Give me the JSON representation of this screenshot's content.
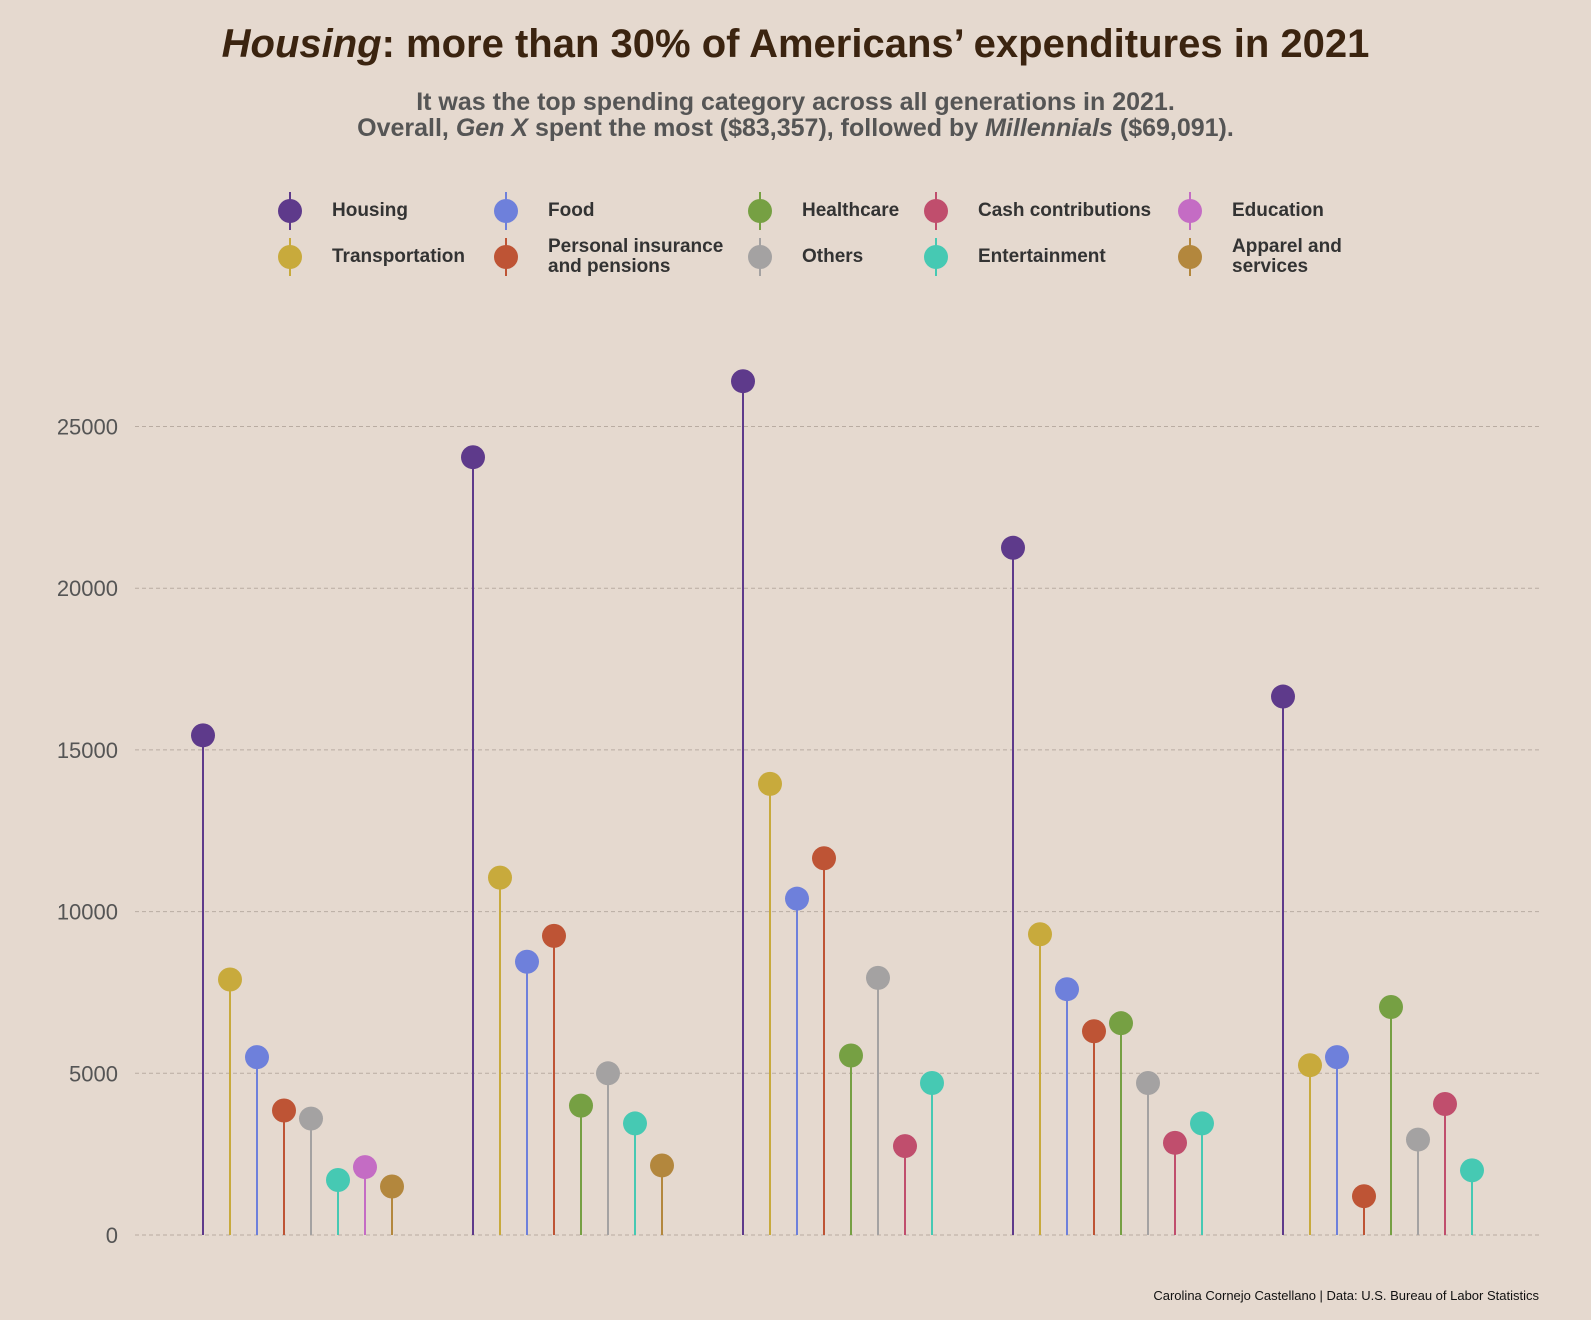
{
  "title": {
    "italic": "Housing",
    "rest": ": more than 30% of Americans’ expenditures in 2021"
  },
  "subtitle": {
    "line1": "It was the top spending category across all generations in 2021.",
    "line2_a": "Overall, ",
    "line2_b": "Gen X",
    "line2_c": " spent the most ($83,357), followed by ",
    "line2_d": "Millennials",
    "line2_e": " ($69,091)."
  },
  "legend": [
    {
      "label": "Housing",
      "color": "#5e3a8b"
    },
    {
      "label": "Food",
      "color": "#6e80db"
    },
    {
      "label": "Healthcare",
      "color": "#76a043"
    },
    {
      "label": "Cash contributions",
      "color": "#c04e6d"
    },
    {
      "label": "Education",
      "color": "#c46cc4"
    },
    {
      "label": "Transportation",
      "color": "#c8aa3c"
    },
    {
      "label": "Personal insurance\nand pensions",
      "color": "#be5435"
    },
    {
      "label": "Others",
      "color": "#a4a2a2"
    },
    {
      "label": "Entertainment",
      "color": "#46c9b3"
    },
    {
      "label": "Apparel and\nservices",
      "color": "#b3873d"
    }
  ],
  "credit": "Carolina Cornejo Castellano | Data: U.S. Bureau of Labor Statistics",
  "chart_data": {
    "type": "lollipop",
    "ylim": [
      0,
      27000
    ],
    "yticks": [
      0,
      5000,
      10000,
      15000,
      20000,
      25000
    ],
    "grid": true,
    "legend_position": "top",
    "groups": [
      {
        "items": [
          {
            "category": "Housing",
            "value": 15450
          },
          {
            "category": "Transportation",
            "value": 7900
          },
          {
            "category": "Food",
            "value": 5500
          },
          {
            "category": "Personal insurance and pensions",
            "value": 3850
          },
          {
            "category": "Others",
            "value": 3600
          },
          {
            "category": "Entertainment",
            "value": 1700
          },
          {
            "category": "Education",
            "value": 2100
          },
          {
            "category": "Apparel and services",
            "value": 1500
          }
        ]
      },
      {
        "items": [
          {
            "category": "Housing",
            "value": 24050
          },
          {
            "category": "Transportation",
            "value": 11050
          },
          {
            "category": "Food",
            "value": 8450
          },
          {
            "category": "Personal insurance and pensions",
            "value": 9250
          },
          {
            "category": "Healthcare",
            "value": 4000
          },
          {
            "category": "Others",
            "value": 5000
          },
          {
            "category": "Entertainment",
            "value": 3450
          },
          {
            "category": "Apparel and services",
            "value": 2150
          }
        ]
      },
      {
        "items": [
          {
            "category": "Housing",
            "value": 26400
          },
          {
            "category": "Transportation",
            "value": 13950
          },
          {
            "category": "Food",
            "value": 10400
          },
          {
            "category": "Personal insurance and pensions",
            "value": 11650
          },
          {
            "category": "Healthcare",
            "value": 5550
          },
          {
            "category": "Others",
            "value": 7950
          },
          {
            "category": "Cash contributions",
            "value": 2750
          },
          {
            "category": "Entertainment",
            "value": 4700
          }
        ]
      },
      {
        "items": [
          {
            "category": "Housing",
            "value": 21250
          },
          {
            "category": "Transportation",
            "value": 9300
          },
          {
            "category": "Food",
            "value": 7600
          },
          {
            "category": "Personal insurance and pensions",
            "value": 6300
          },
          {
            "category": "Healthcare",
            "value": 6550
          },
          {
            "category": "Others",
            "value": 4700
          },
          {
            "category": "Cash contributions",
            "value": 2850
          },
          {
            "category": "Entertainment",
            "value": 3450
          }
        ]
      },
      {
        "items": [
          {
            "category": "Housing",
            "value": 16650
          },
          {
            "category": "Transportation",
            "value": 5250
          },
          {
            "category": "Food",
            "value": 5500
          },
          {
            "category": "Personal insurance and pensions",
            "value": 1200
          },
          {
            "category": "Healthcare",
            "value": 7050
          },
          {
            "category": "Others",
            "value": 2950
          },
          {
            "category": "Cash contributions",
            "value": 4050
          },
          {
            "category": "Entertainment",
            "value": 2000
          }
        ]
      }
    ]
  }
}
